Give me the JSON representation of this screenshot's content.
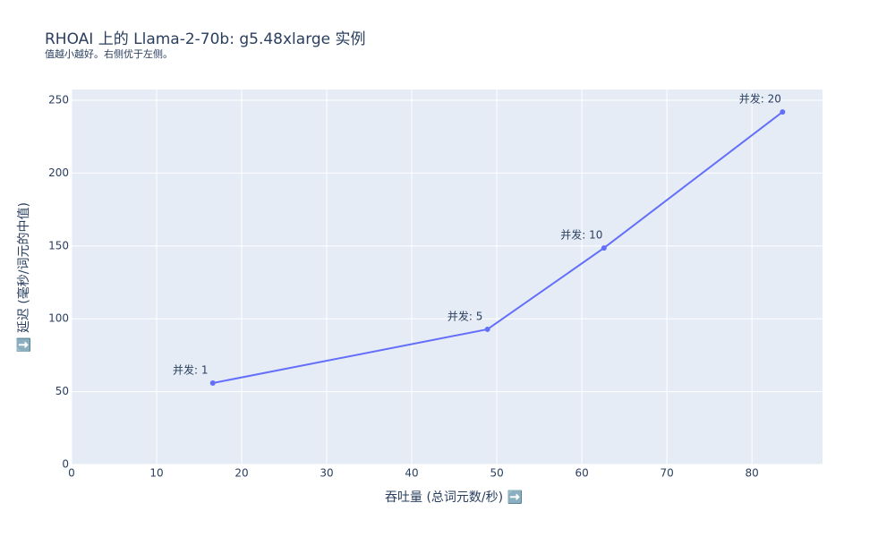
{
  "chart_data": {
    "type": "line",
    "title": "RHOAI 上的 Llama-2-70b: g5.48xlarge 实例",
    "subtitle": "值越小越好。右侧优于左侧。",
    "x_label": "吞吐量 (总词元数/秒) ➡️",
    "y_label": "⬇️ 延迟 (毫秒/词元的中值)",
    "series": [
      {
        "color": "#636efa",
        "x": [
          16.6,
          48.9,
          62.6,
          83.6
        ],
        "values": [
          55.9,
          92.8,
          148.6,
          242.0
        ],
        "point_labels": [
          "并发: 1",
          "并发: 5",
          "并发: 10",
          "并发: 20"
        ]
      }
    ],
    "xlim": [
      0,
      88.3
    ],
    "xticks": [
      0,
      10,
      20,
      30,
      40,
      50,
      60,
      70,
      80
    ],
    "ylim": [
      0,
      257.4
    ],
    "yticks": [
      0,
      50,
      100,
      150,
      200,
      250
    ],
    "grid": true
  }
}
